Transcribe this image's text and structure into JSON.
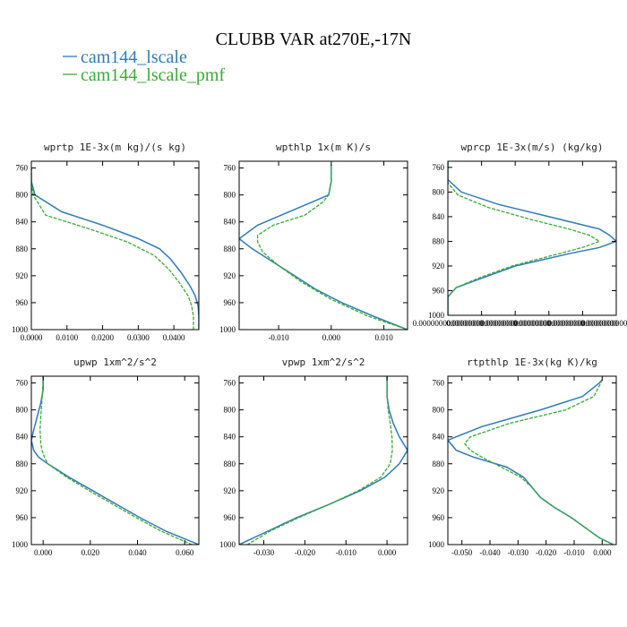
{
  "figure": {
    "title": "CLUBB VAR at270E,-17N",
    "legend": [
      {
        "label": "cam144_lscale",
        "color": "#2f7bb5",
        "dash": "solid"
      },
      {
        "label": "cam144_lscale_pmf",
        "color": "#3aaa35",
        "dash": "dashed"
      }
    ]
  },
  "chart_data": [
    {
      "type": "line",
      "title": "wprtp  1E-3x(m kg)/(s kg)",
      "xlabel": "",
      "ylabel": "",
      "xlim": [
        0.0,
        0.047
      ],
      "ylim": [
        1000,
        750
      ],
      "x_ticks": [
        0.0,
        0.01,
        0.02,
        0.03,
        0.04
      ],
      "x_tick_labels": [
        "0.0000",
        "0.0100",
        "0.0200",
        "0.0300",
        "0.0400"
      ],
      "y_ticks": [
        760,
        800,
        840,
        880,
        920,
        960,
        1000
      ],
      "series": [
        {
          "name": "cam144_lscale",
          "y": [
            760,
            780,
            800,
            825,
            845,
            865,
            880,
            895,
            915,
            935,
            950,
            965,
            980,
            1000
          ],
          "x": [
            0.0,
            0.0,
            0.001,
            0.0085,
            0.02,
            0.03,
            0.036,
            0.039,
            0.042,
            0.0445,
            0.046,
            0.0468,
            0.047,
            0.047
          ]
        },
        {
          "name": "cam144_lscale_pmf",
          "y": [
            760,
            780,
            800,
            830,
            850,
            870,
            890,
            910,
            930,
            950,
            965,
            980,
            1000
          ],
          "x": [
            0.0,
            0.0,
            0.0005,
            0.004,
            0.016,
            0.027,
            0.0345,
            0.0385,
            0.0415,
            0.044,
            0.045,
            0.0455,
            0.0455
          ]
        }
      ]
    },
    {
      "type": "line",
      "title": "wpthlp  1x(m K)/s",
      "xlabel": "",
      "ylabel": "",
      "xlim": [
        -0.0175,
        0.0145
      ],
      "ylim": [
        1000,
        750
      ],
      "x_ticks": [
        -0.01,
        0.0,
        0.01
      ],
      "x_tick_labels": [
        "-0.010",
        "0.000",
        "0.010"
      ],
      "y_ticks": [
        760,
        800,
        840,
        880,
        920,
        960,
        1000
      ],
      "series": [
        {
          "name": "cam144_lscale",
          "y": [
            755,
            780,
            800,
            805,
            825,
            845,
            865,
            880,
            900,
            920,
            940,
            960,
            980,
            1000
          ],
          "x": [
            0.0,
            0.0,
            -0.0005,
            -0.002,
            -0.008,
            -0.014,
            -0.0175,
            -0.015,
            -0.011,
            -0.007,
            -0.003,
            0.002,
            0.008,
            0.0145
          ]
        },
        {
          "name": "cam144_lscale_pmf",
          "y": [
            755,
            780,
            800,
            810,
            830,
            845,
            860,
            870,
            885,
            905,
            930,
            955,
            980,
            1000
          ],
          "x": [
            0.0,
            0.0,
            -0.0005,
            -0.0015,
            -0.005,
            -0.011,
            -0.014,
            -0.014,
            -0.013,
            -0.01,
            -0.0055,
            0.0,
            0.007,
            0.0145
          ]
        }
      ]
    },
    {
      "type": "line",
      "title": "wprcp  1E-3x(m/s) (kg/kg)",
      "xlabel": "",
      "ylabel": "",
      "xlim": [
        0.0,
        5e-07
      ],
      "ylim": [
        1000,
        750
      ],
      "x_ticks": [
        0.0,
        1e-07,
        2e-07,
        3e-07,
        4e-07,
        5e-07
      ],
      "x_tick_labels": [
        "0.0000000000000000",
        "0.0000000000000000",
        "0.0000000000000000",
        "0.0000000000000000",
        "0.0000000000000000",
        "0.0000000000000000"
      ],
      "y_ticks": [
        760,
        800,
        840,
        880,
        920,
        960,
        1000
      ],
      "series": [
        {
          "name": "cam144_lscale",
          "y": [
            750,
            780,
            800,
            820,
            840,
            860,
            870,
            880,
            890,
            900,
            910,
            920,
            940,
            955,
            970,
            985,
            1000
          ],
          "x": [
            0.0,
            0.0,
            4e-08,
            1.5e-07,
            3e-07,
            4.5e-07,
            4.8e-07,
            5e-07,
            4.5e-07,
            3.6e-07,
            2.8e-07,
            2e-07,
            1e-07,
            2.5e-08,
            0.0,
            0.0,
            0.0
          ]
        },
        {
          "name": "cam144_lscale_pmf",
          "y": [
            750,
            785,
            805,
            825,
            845,
            860,
            870,
            880,
            890,
            900,
            910,
            920,
            940,
            955,
            970,
            985,
            1000
          ],
          "x": [
            0.0,
            0.0,
            3e-08,
            1.2e-07,
            2.5e-07,
            3.6e-07,
            4.2e-07,
            4.5e-07,
            4e-07,
            3.3e-07,
            2.6e-07,
            1.9e-07,
            9e-08,
            2.5e-08,
            0.0,
            0.0,
            0.0
          ]
        }
      ]
    },
    {
      "type": "line",
      "title": "upwp  1xm^2/s^2",
      "xlabel": "",
      "ylabel": "",
      "xlim": [
        -0.005,
        0.066
      ],
      "ylim": [
        1000,
        750
      ],
      "x_ticks": [
        0.0,
        0.02,
        0.04,
        0.06
      ],
      "x_tick_labels": [
        "0.000",
        "0.020",
        "0.040",
        "0.060"
      ],
      "y_ticks": [
        760,
        800,
        840,
        880,
        920,
        960,
        1000
      ],
      "series": [
        {
          "name": "cam144_lscale",
          "y": [
            750,
            770,
            790,
            810,
            830,
            845,
            860,
            870,
            880,
            900,
            920,
            940,
            960,
            980,
            1000
          ],
          "x": [
            0.0,
            0.0,
            -0.001,
            -0.0025,
            -0.004,
            -0.005,
            -0.004,
            -0.002,
            0.002,
            0.011,
            0.021,
            0.031,
            0.041,
            0.052,
            0.066
          ]
        },
        {
          "name": "cam144_lscale_pmf",
          "y": [
            750,
            770,
            790,
            810,
            830,
            850,
            860,
            870,
            880,
            900,
            920,
            940,
            960,
            980,
            1000
          ],
          "x": [
            0.0,
            -0.0002,
            -0.0006,
            -0.001,
            -0.0013,
            -0.001,
            -0.0005,
            0.0005,
            0.002,
            0.01,
            0.0195,
            0.0295,
            0.0395,
            0.05,
            0.063
          ]
        }
      ]
    },
    {
      "type": "line",
      "title": "vpwp  1xm^2/s^2",
      "xlabel": "",
      "ylabel": "",
      "xlim": [
        -0.036,
        0.005
      ],
      "ylim": [
        1000,
        750
      ],
      "x_ticks": [
        -0.03,
        -0.02,
        -0.01,
        0.0
      ],
      "x_tick_labels": [
        "-0.030",
        "-0.020",
        "-0.010",
        "0.000"
      ],
      "y_ticks": [
        760,
        800,
        840,
        880,
        920,
        960,
        1000
      ],
      "series": [
        {
          "name": "cam144_lscale",
          "y": [
            750,
            780,
            800,
            820,
            840,
            860,
            880,
            900,
            920,
            940,
            960,
            980,
            1000
          ],
          "x": [
            0.0,
            0.0,
            0.0005,
            0.0015,
            0.003,
            0.005,
            0.003,
            -0.0005,
            -0.0065,
            -0.014,
            -0.022,
            -0.029,
            -0.036
          ]
        },
        {
          "name": "cam144_lscale_pmf",
          "y": [
            750,
            780,
            800,
            820,
            840,
            860,
            880,
            900,
            920,
            940,
            960,
            980,
            1000
          ],
          "x": [
            0.0,
            0.0,
            0.0003,
            0.0008,
            0.0012,
            0.0013,
            0.0008,
            -0.0015,
            -0.007,
            -0.014,
            -0.0215,
            -0.0285,
            -0.034
          ]
        }
      ]
    },
    {
      "type": "line",
      "title": "rtpthlp  1E-3x(kg K)/kg",
      "xlabel": "",
      "ylabel": "",
      "xlim": [
        -0.055,
        0.005
      ],
      "ylim": [
        1000,
        750
      ],
      "x_ticks": [
        -0.05,
        -0.04,
        -0.03,
        -0.02,
        -0.01,
        0.0
      ],
      "x_tick_labels": [
        "-0.050",
        "-0.040",
        "-0.030",
        "-0.020",
        "-0.010",
        "0.000"
      ],
      "y_ticks": [
        760,
        800,
        840,
        880,
        920,
        960,
        1000
      ],
      "series": [
        {
          "name": "cam144_lscale",
          "y": [
            755,
            760,
            780,
            800,
            825,
            845,
            860,
            870,
            885,
            900,
            915,
            930,
            945,
            960,
            975,
            990,
            1000
          ],
          "x": [
            0.0,
            -0.001,
            -0.007,
            -0.022,
            -0.043,
            -0.055,
            -0.052,
            -0.046,
            -0.034,
            -0.028,
            -0.025,
            -0.022,
            -0.017,
            -0.011,
            -0.006,
            -0.001,
            0.004
          ]
        },
        {
          "name": "cam144_lscale_pmf",
          "y": [
            755,
            760,
            780,
            800,
            820,
            840,
            850,
            860,
            870,
            885,
            900,
            915,
            930,
            945,
            960,
            975,
            990,
            1000
          ],
          "x": [
            0.0,
            -0.0005,
            -0.003,
            -0.013,
            -0.033,
            -0.047,
            -0.049,
            -0.047,
            -0.043,
            -0.036,
            -0.029,
            -0.025,
            -0.022,
            -0.017,
            -0.011,
            -0.006,
            -0.001,
            0.004
          ]
        }
      ]
    }
  ]
}
